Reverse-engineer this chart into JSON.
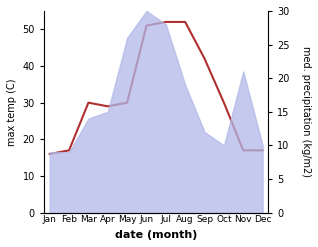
{
  "months": [
    "Jan",
    "Feb",
    "Mar",
    "Apr",
    "May",
    "Jun",
    "Jul",
    "Aug",
    "Sep",
    "Oct",
    "Nov",
    "Dec"
  ],
  "temperature": [
    16,
    17,
    30,
    29,
    30,
    51,
    52,
    52,
    42,
    30,
    17,
    17
  ],
  "precipitation": [
    9,
    9,
    14,
    15,
    26,
    30,
    28,
    19,
    12,
    10,
    21,
    10
  ],
  "temp_color": "#b03030",
  "precip_fill_color": "#b0b8e8",
  "precip_alpha": 0.75,
  "xlabel": "date (month)",
  "ylabel_left": "max temp (C)",
  "ylabel_right": "med. precipitation (kg/m2)",
  "ylim_left": [
    0,
    55
  ],
  "ylim_right": [
    0,
    30
  ],
  "yticks_left": [
    0,
    10,
    20,
    30,
    40,
    50
  ],
  "yticks_right": [
    0,
    5,
    10,
    15,
    20,
    25,
    30
  ],
  "bg_color": "#ffffff",
  "fig_width": 3.18,
  "fig_height": 2.47,
  "dpi": 100
}
